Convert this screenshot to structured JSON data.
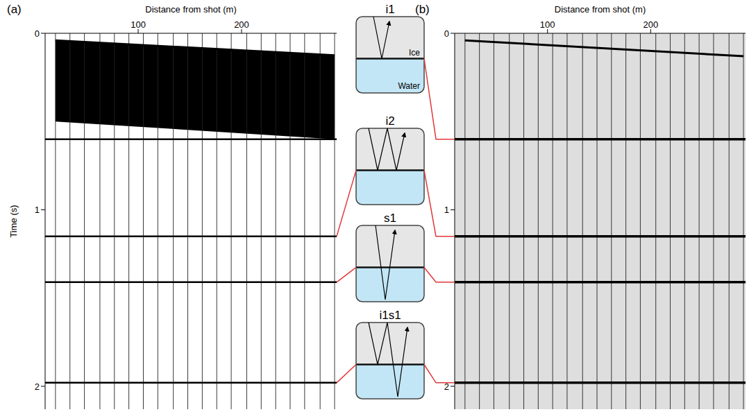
{
  "chart_data": [
    {
      "type": "seismic_gather",
      "panel": "(a)",
      "x_label": "Distance from shot (m)",
      "y_label": "Time (s)",
      "xlim": [
        10,
        292
      ],
      "xticks": [
        100,
        200
      ],
      "ylim": [
        0,
        2.13
      ],
      "yticks": [
        0,
        1,
        2
      ],
      "trace_offsets": [
        20,
        34,
        48,
        63,
        77,
        91,
        105,
        119,
        134,
        148,
        162,
        176,
        190,
        205,
        219,
        233,
        247,
        261,
        276,
        290
      ],
      "direct_arrival": {
        "x": [
          20,
          290
        ],
        "t": [
          0.04,
          0.125
        ]
      },
      "saturated_zone_bottom": [
        0.5,
        0.6
      ],
      "events": [
        {
          "name": "i1",
          "time": 0.6
        },
        {
          "name": "i2",
          "time": 1.15
        },
        {
          "name": "s1",
          "time": 1.41
        },
        {
          "name": "i1s1",
          "time": 1.98
        }
      ]
    },
    {
      "type": "seismic_gather",
      "panel": "(b)",
      "x_label": "Distance from shot (m)",
      "xlim": [
        10,
        292
      ],
      "xticks": [
        100,
        200
      ],
      "ylim": [
        0,
        2.13
      ],
      "yticks": [
        0,
        1,
        2
      ],
      "trace_offsets": [
        20,
        34,
        48,
        63,
        77,
        91,
        105,
        119,
        134,
        148,
        162,
        176,
        190,
        205,
        219,
        233,
        247,
        261,
        276,
        290
      ],
      "direct_arrival": {
        "x": [
          20,
          290
        ],
        "t": [
          0.04,
          0.13
        ]
      },
      "events": [
        {
          "name": "i1",
          "time": 0.6
        },
        {
          "name": "i2",
          "time": 1.15
        },
        {
          "name": "s1",
          "time": 1.41
        },
        {
          "name": "i1s1",
          "time": 1.98
        }
      ]
    }
  ],
  "diagram": {
    "boxes": [
      {
        "label": "i1",
        "layer_labels": [
          "Ice",
          "Water"
        ]
      },
      {
        "label": "i2"
      },
      {
        "label": "s1"
      },
      {
        "label": "i1s1"
      }
    ]
  }
}
